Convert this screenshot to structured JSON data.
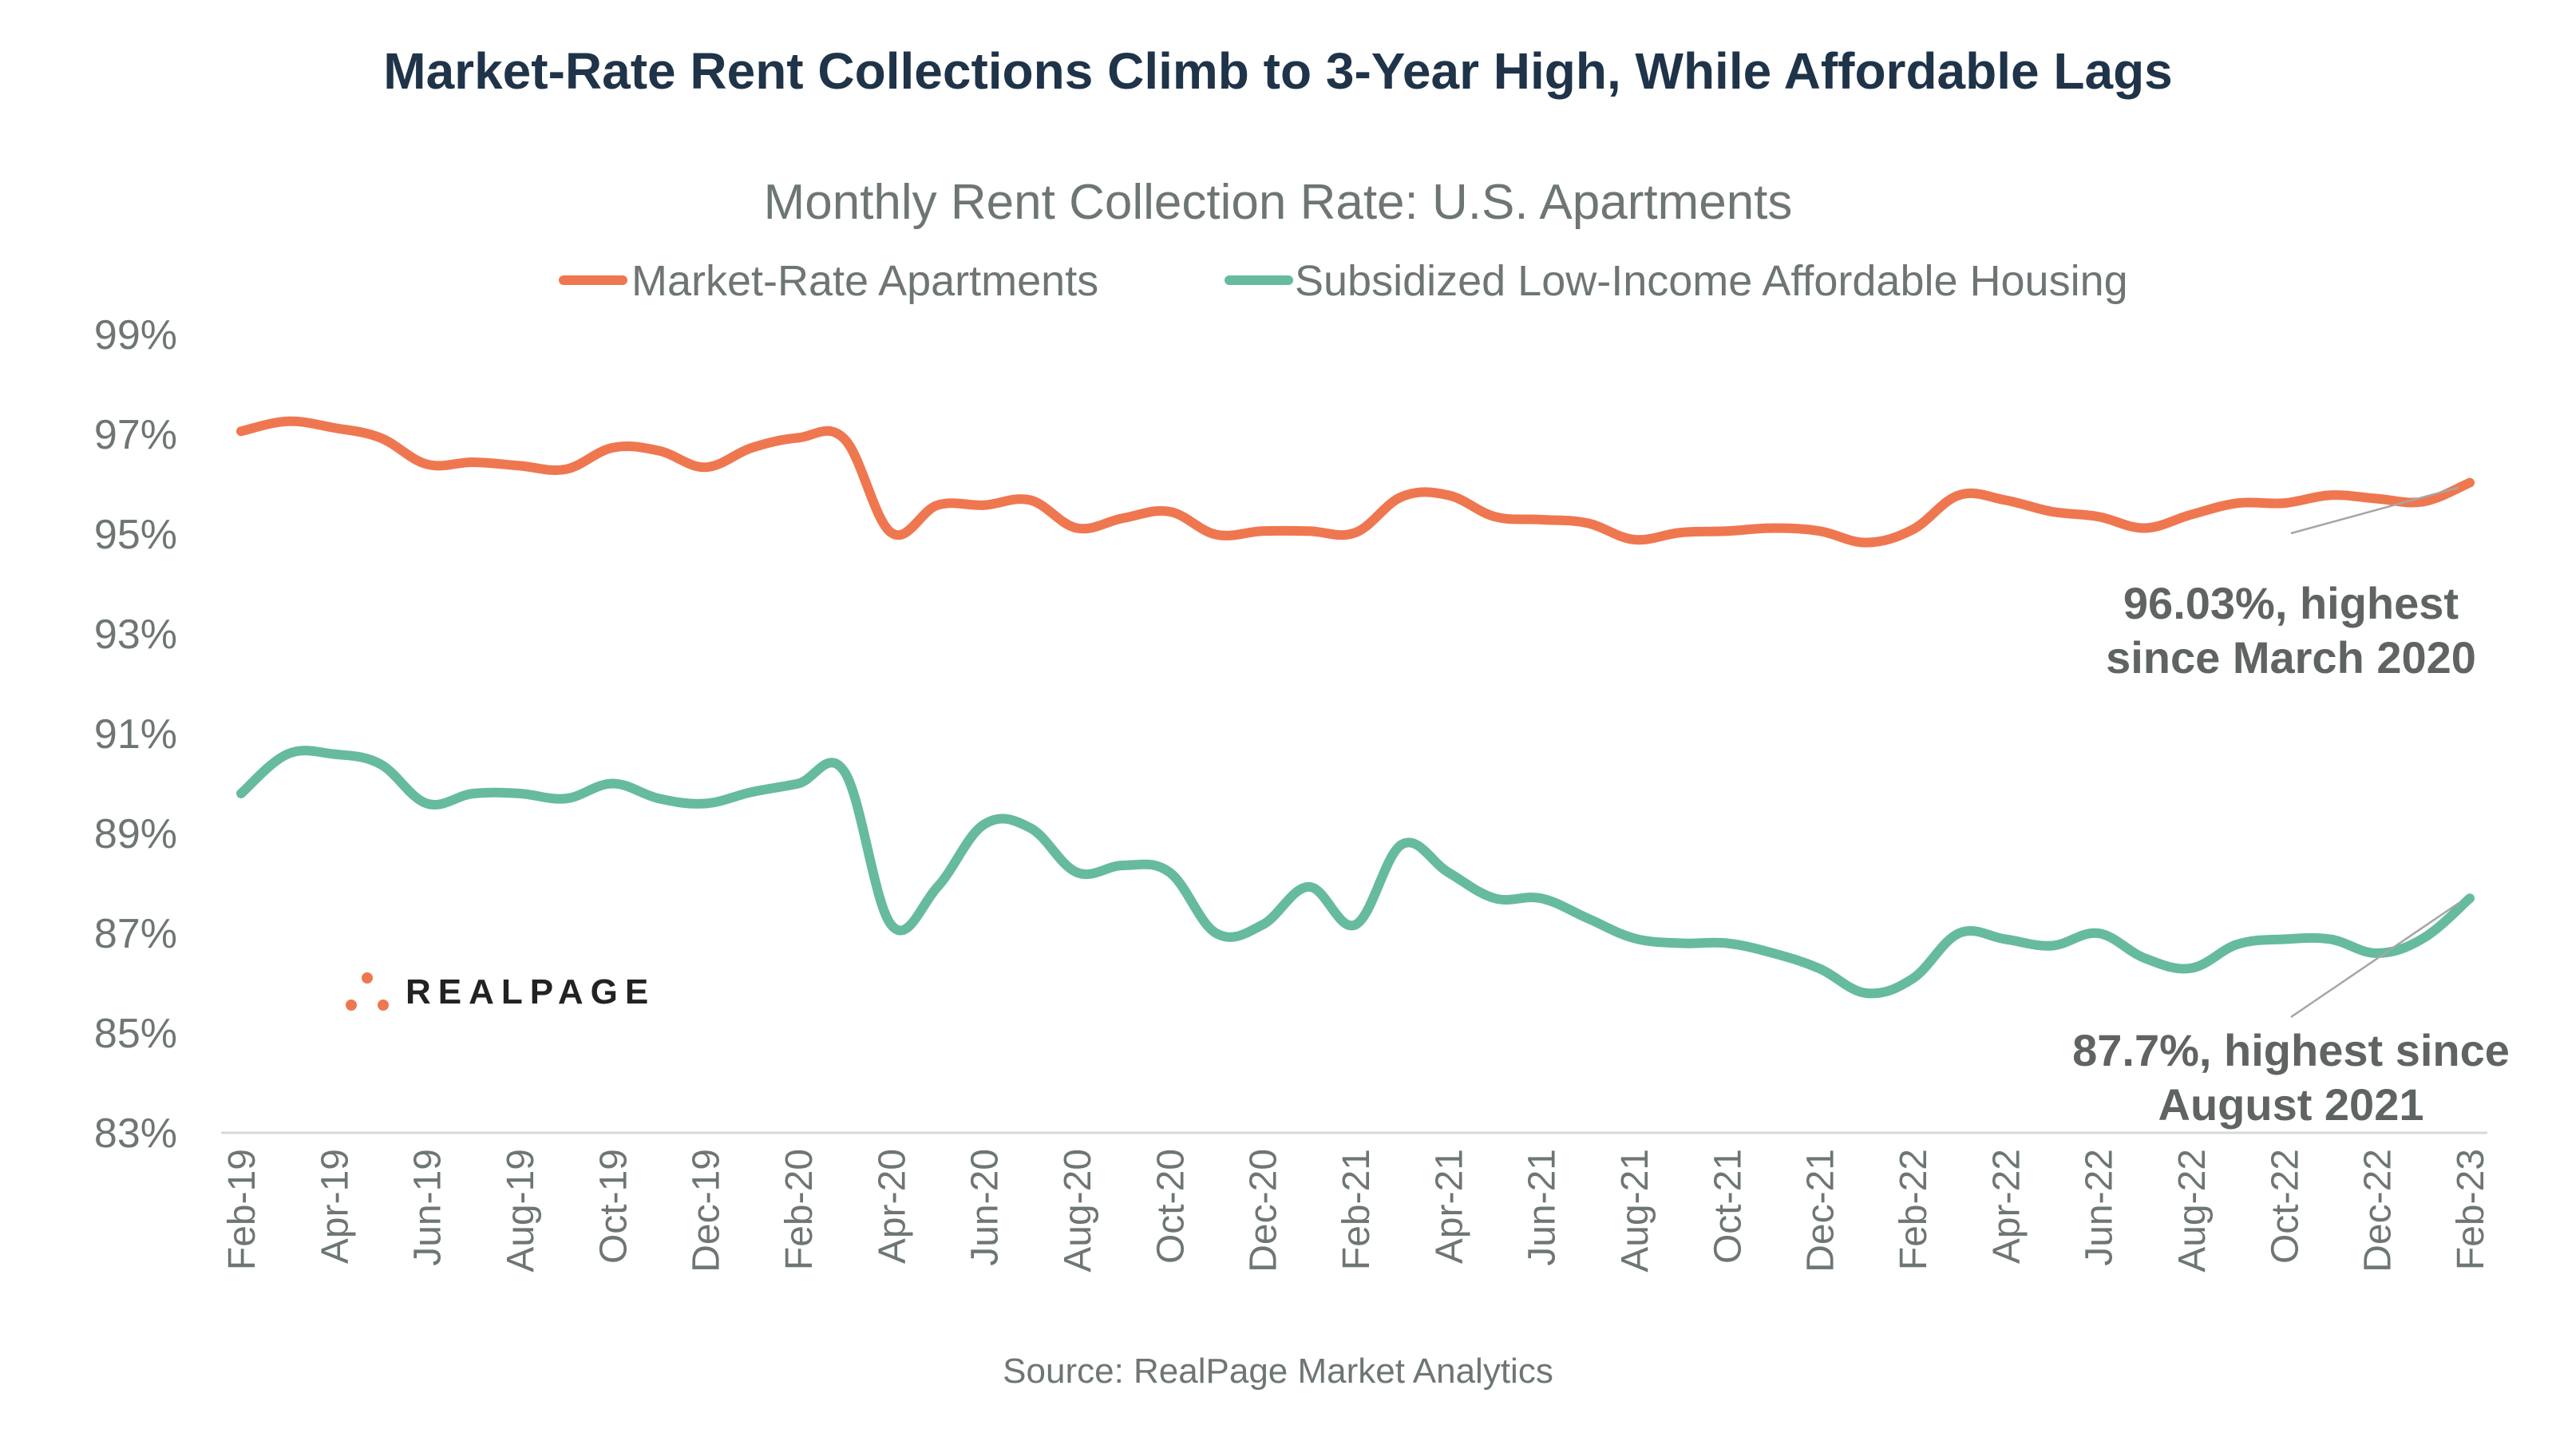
{
  "title": "Market-Rate Rent Collections Climb to 3-Year High, While Affordable Lags",
  "source": "Source: RealPage Market Analytics",
  "logo": "REALPAGE",
  "chart_data": {
    "type": "line",
    "title": "Monthly Rent Collection Rate: U.S. Apartments",
    "xlabel": "",
    "ylabel": "",
    "ylim": [
      83,
      99
    ],
    "yticks": [
      "83%",
      "85%",
      "87%",
      "89%",
      "91%",
      "93%",
      "95%",
      "97%",
      "99%"
    ],
    "ytick_values": [
      83,
      85,
      87,
      89,
      91,
      93,
      95,
      97,
      99
    ],
    "grid": false,
    "legend": "top",
    "x": [
      "Feb-19",
      "Mar-19",
      "Apr-19",
      "May-19",
      "Jun-19",
      "Jul-19",
      "Aug-19",
      "Sep-19",
      "Oct-19",
      "Nov-19",
      "Dec-19",
      "Jan-20",
      "Feb-20",
      "Mar-20",
      "Apr-20",
      "May-20",
      "Jun-20",
      "Jul-20",
      "Aug-20",
      "Sep-20",
      "Oct-20",
      "Nov-20",
      "Dec-20",
      "Jan-21",
      "Feb-21",
      "Mar-21",
      "Apr-21",
      "May-21",
      "Jun-21",
      "Jul-21",
      "Aug-21",
      "Sep-21",
      "Oct-21",
      "Nov-21",
      "Dec-21",
      "Jan-22",
      "Feb-22",
      "Mar-22",
      "Apr-22",
      "May-22",
      "Jun-22",
      "Jul-22",
      "Aug-22",
      "Sep-22",
      "Oct-22",
      "Nov-22",
      "Dec-22",
      "Jan-23",
      "Feb-23"
    ],
    "xtick_labels": [
      "Feb-19",
      "Apr-19",
      "Jun-19",
      "Aug-19",
      "Oct-19",
      "Dec-19",
      "Feb-20",
      "Apr-20",
      "Jun-20",
      "Aug-20",
      "Oct-20",
      "Dec-20",
      "Feb-21",
      "Apr-21",
      "Jun-21",
      "Aug-21",
      "Oct-21",
      "Dec-21",
      "Feb-22",
      "Apr-22",
      "Jun-22",
      "Aug-22",
      "Oct-22",
      "Dec-22",
      "Feb-23"
    ],
    "series": [
      {
        "name": "Market-Rate Apartments",
        "color": "#ef7750",
        "values": [
          97.06,
          97.26,
          97.13,
          96.93,
          96.4,
          96.44,
          96.37,
          96.3,
          96.73,
          96.67,
          96.34,
          96.73,
          96.93,
          96.9,
          95.03,
          95.58,
          95.58,
          95.68,
          95.12,
          95.32,
          95.45,
          94.99,
          95.06,
          95.06,
          95.03,
          95.75,
          95.78,
          95.35,
          95.29,
          95.22,
          94.89,
          95.03,
          95.06,
          95.12,
          95.06,
          94.83,
          95.09,
          95.78,
          95.68,
          95.45,
          95.35,
          95.12,
          95.39,
          95.62,
          95.62,
          95.78,
          95.71,
          95.65,
          96.03
        ]
      },
      {
        "name": "Subsidized Low-Income Affordable Housing",
        "color": "#66bb9d",
        "values": [
          89.8,
          90.59,
          90.59,
          90.39,
          89.6,
          89.8,
          89.8,
          89.7,
          90.0,
          89.7,
          89.6,
          89.83,
          90.0,
          90.23,
          87.17,
          87.93,
          89.18,
          89.11,
          88.22,
          88.36,
          88.22,
          87.0,
          87.17,
          87.93,
          87.17,
          88.78,
          88.22,
          87.7,
          87.7,
          87.3,
          86.9,
          86.8,
          86.8,
          86.6,
          86.29,
          85.8,
          86.09,
          87.0,
          86.88,
          86.75,
          87.0,
          86.5,
          86.3,
          86.78,
          86.88,
          86.88,
          86.6,
          86.9,
          87.7
        ]
      }
    ],
    "annotations": [
      {
        "series": 0,
        "line1": "96.03%, highest",
        "line2": "since March 2020"
      },
      {
        "series": 1,
        "line1": "87.7%, highest since",
        "line2": "August 2021"
      }
    ]
  }
}
